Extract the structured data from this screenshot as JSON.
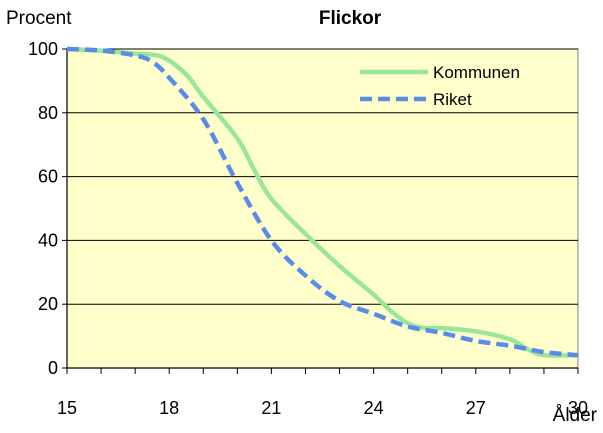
{
  "chart_data": {
    "type": "line",
    "title": "Flickor",
    "ylabel": "Procent",
    "xlabel": "Ålder",
    "xlim": [
      15,
      30
    ],
    "ylim": [
      0,
      100
    ],
    "xticks": [
      15,
      18,
      21,
      24,
      27,
      30
    ],
    "yticks": [
      0,
      20,
      40,
      60,
      80,
      100
    ],
    "grid": "horizontal",
    "legend_position": "top-right",
    "plot_background": "#ffffcc",
    "series": [
      {
        "name": "Kommunen",
        "color": "#99e699",
        "style": "solid",
        "x": [
          15,
          16,
          17,
          17.8,
          18.5,
          19,
          20,
          20.5,
          21,
          22,
          23,
          24,
          24.5,
          25,
          25.5,
          26,
          27,
          28,
          28.5,
          29,
          30
        ],
        "y": [
          100,
          99.5,
          98.5,
          97.5,
          92,
          85,
          72,
          62,
          53,
          42,
          32,
          23,
          18,
          14,
          12.5,
          12.5,
          11.5,
          9,
          6,
          4,
          4
        ]
      },
      {
        "name": "Riket",
        "color": "#5b8be8",
        "style": "dashed",
        "x": [
          15,
          16,
          17,
          17.5,
          18,
          19,
          20,
          21,
          22,
          23,
          24,
          25,
          26,
          27,
          28,
          29,
          30
        ],
        "y": [
          100,
          99.5,
          98,
          96,
          91,
          78,
          58,
          40,
          29,
          21,
          17,
          13,
          11,
          8.5,
          7,
          5,
          4
        ]
      }
    ]
  }
}
